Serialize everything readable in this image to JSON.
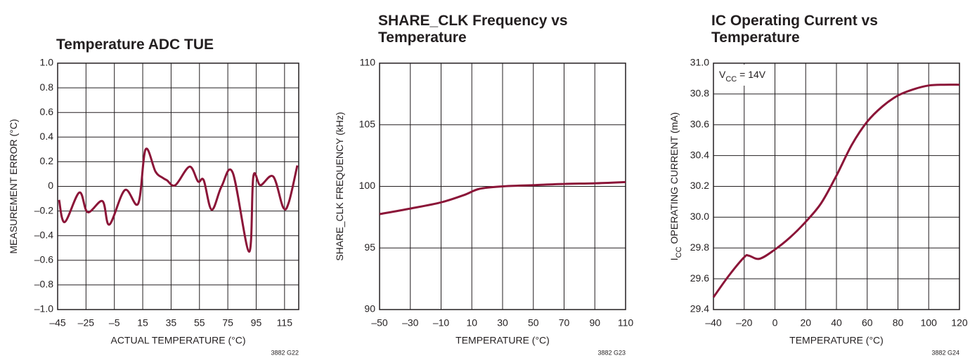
{
  "chart_data": [
    {
      "type": "line",
      "title": [
        "Temperature ADC TUE"
      ],
      "xlabel": "ACTUAL TEMPERATURE (°C)",
      "ylabel": [
        "MEASUREMENT ERROR (°C)"
      ],
      "x": [
        -44,
        -40,
        -29.7,
        -23.8,
        -13.4,
        -8.5,
        2.4,
        11.8,
        17,
        24,
        29,
        32,
        38,
        48,
        54,
        58,
        63.6,
        70.6,
        78.5,
        90,
        93,
        98,
        107,
        114,
        118,
        124
      ],
      "values": [
        -0.11,
        -0.29,
        -0.05,
        -0.21,
        -0.12,
        -0.31,
        -0.03,
        -0.14,
        0.3,
        0.12,
        0.07,
        0.05,
        0.01,
        0.16,
        0.04,
        0.05,
        -0.19,
        0.0,
        0.11,
        -0.53,
        0.08,
        0.01,
        0.08,
        -0.17,
        -0.13,
        0.17
      ],
      "color": "#8b1538",
      "xlim": [
        -45,
        125
      ],
      "ylim": [
        -1,
        1
      ],
      "xticks": [
        {
          "value": -45,
          "label": "–45"
        },
        {
          "value": -25,
          "label": "–25"
        },
        {
          "value": -5,
          "label": "–5"
        },
        15,
        35,
        55,
        75,
        95,
        115
      ],
      "yticks": [
        {
          "value": -1,
          "label": "–1.0"
        },
        {
          "value": -0.8,
          "label": "–0.8"
        },
        {
          "value": -0.6,
          "label": "–0.6"
        },
        {
          "value": -0.4,
          "label": "–0.4"
        },
        {
          "value": -0.2,
          "label": "–0.2"
        },
        0,
        0.2,
        0.4,
        0.6,
        0.8,
        {
          "value": 1,
          "label": "1.0"
        }
      ],
      "grid": true,
      "note": "3882 G22"
    },
    {
      "type": "line",
      "title": [
        "SHARE_CLK Frequency vs",
        "Temperature"
      ],
      "xlabel": "TEMPERATURE (°C)",
      "ylabel": [
        "SHARE_CLK FREQUENCY (kHz)"
      ],
      "x": [
        -50,
        -30,
        -10,
        5,
        15,
        30,
        50,
        70,
        90,
        110
      ],
      "values": [
        97.75,
        98.2,
        98.7,
        99.3,
        99.8,
        100.0,
        100.1,
        100.2,
        100.25,
        100.35
      ],
      "color": "#8b1538",
      "xlim": [
        -50,
        110
      ],
      "ylim": [
        90,
        110
      ],
      "xticks": [
        {
          "value": -50,
          "label": "–50"
        },
        {
          "value": -30,
          "label": "–30"
        },
        {
          "value": -10,
          "label": "–10"
        },
        10,
        30,
        50,
        70,
        90,
        110
      ],
      "yticks": [
        90,
        95,
        100,
        105,
        110
      ],
      "grid": true,
      "note": "3882 G23"
    },
    {
      "type": "line",
      "title": [
        "IC Operating Current vs",
        "Temperature"
      ],
      "xlabel": "TEMPERATURE (°C)",
      "ylabel": [
        "I",
        "CC",
        " OPERATING CURRENT (mA)"
      ],
      "annotation": [
        "V",
        "CC",
        " = 14V"
      ],
      "x": [
        -40,
        -30,
        -20,
        -17,
        -10,
        0,
        10,
        20,
        30,
        40,
        50,
        60,
        70,
        80,
        90,
        100,
        110,
        120
      ],
      "values": [
        29.48,
        29.62,
        29.74,
        29.75,
        29.73,
        29.79,
        29.87,
        29.97,
        30.09,
        30.27,
        30.47,
        30.62,
        30.72,
        30.79,
        30.83,
        30.855,
        30.86,
        30.86
      ],
      "color": "#8b1538",
      "xlim": [
        -40,
        120
      ],
      "ylim": [
        29.4,
        31
      ],
      "xticks": [
        {
          "value": -40,
          "label": "–40"
        },
        {
          "value": -20,
          "label": "–20"
        },
        0,
        20,
        40,
        60,
        80,
        100,
        120
      ],
      "yticks": [
        29.4,
        29.6,
        29.8,
        {
          "value": 30,
          "label": "30.0"
        },
        30.2,
        30.4,
        30.6,
        30.8,
        {
          "value": 31,
          "label": "31.0"
        }
      ],
      "grid": true,
      "note": "3882 G24"
    }
  ]
}
